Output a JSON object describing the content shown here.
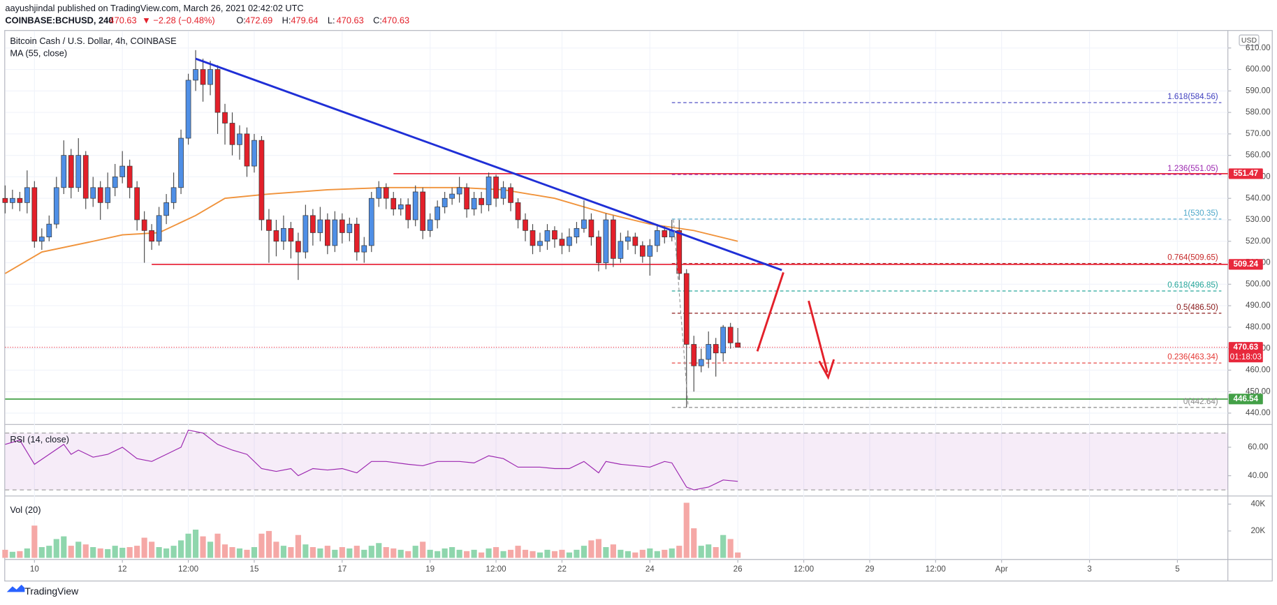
{
  "header": {
    "publisher": "aayushjindal published on TradingView.com, March 26, 2021 02:42:02 UTC",
    "symbol": "COINBASE:BCHUSD, 240",
    "change": "▼ −2.28 (−0.48%)",
    "ohlc": [
      {
        "label": "O:",
        "value": "472.69"
      },
      {
        "label": "H:",
        "value": "479.64"
      },
      {
        "label": "L:",
        "value": "470.63"
      },
      {
        "label": "C:",
        "value": "470.63"
      }
    ]
  },
  "chart_data": {
    "type": "candlestick",
    "title": "Bitcoin Cash / U.S. Dollar, 4h, COINBASE",
    "currency": "USD",
    "open": [
      540,
      538,
      540,
      538,
      545,
      520,
      522,
      528,
      545,
      560,
      545,
      560,
      540,
      545,
      538,
      545,
      550,
      555,
      545,
      530,
      525,
      520,
      532,
      538,
      545,
      568,
      595,
      600,
      593,
      600,
      580,
      575,
      565,
      570,
      555,
      567,
      530,
      525,
      520,
      526,
      520,
      515,
      532,
      524,
      530,
      518,
      530,
      524,
      528,
      515,
      518,
      540,
      545,
      540,
      535,
      537,
      530,
      543,
      525,
      530,
      536,
      540,
      542,
      545,
      535,
      540,
      537,
      550,
      540,
      545,
      538,
      530,
      525,
      518,
      520,
      525,
      521,
      518,
      522,
      526,
      530,
      522,
      510,
      530,
      512,
      520,
      522,
      518,
      513,
      518,
      525,
      522,
      525,
      505,
      472,
      462,
      465,
      472,
      468,
      480,
      472.69
    ],
    "high": [
      546,
      544,
      543,
      553,
      548,
      526,
      532,
      550,
      567,
      563,
      568,
      562,
      550,
      548,
      552,
      556,
      562,
      558,
      548,
      534,
      528,
      536,
      542,
      552,
      572,
      598,
      609,
      605,
      604,
      602,
      584,
      580,
      574,
      573,
      570,
      569,
      535,
      530,
      532,
      529,
      524,
      537,
      535,
      536,
      533,
      534,
      533,
      531,
      531,
      522,
      543,
      548,
      547,
      543,
      540,
      540,
      546,
      545,
      533,
      539,
      543,
      545,
      550,
      547,
      543,
      543,
      552,
      551,
      548,
      547,
      540,
      533,
      528,
      524,
      528,
      527,
      524,
      526,
      529,
      539,
      533,
      525,
      533,
      532,
      524,
      525,
      524,
      520,
      521,
      528,
      527,
      530,
      530,
      507,
      476,
      470,
      478,
      475,
      481,
      482,
      479.64
    ],
    "low": [
      533,
      535,
      534,
      533,
      517,
      516,
      520,
      526,
      542,
      540,
      543,
      535,
      536,
      530,
      535,
      541,
      547,
      540,
      525,
      510,
      516,
      518,
      528,
      535,
      542,
      565,
      590,
      585,
      588,
      570,
      565,
      560,
      558,
      550,
      552,
      525,
      510,
      513,
      516,
      512,
      502,
      512,
      518,
      520,
      514,
      515,
      519,
      520,
      511,
      510,
      515,
      536,
      535,
      532,
      532,
      526,
      527,
      521,
      522,
      526,
      533,
      537,
      538,
      531,
      532,
      533,
      534,
      536,
      537,
      534,
      526,
      520,
      514,
      515,
      516,
      517,
      514,
      515,
      519,
      524,
      518,
      506,
      507,
      508,
      510,
      516,
      514,
      510,
      504,
      515,
      519,
      520,
      502,
      442.64,
      450,
      459,
      461,
      457,
      464,
      470,
      470.63
    ],
    "close": [
      538,
      540,
      538,
      545,
      520,
      522,
      528,
      545,
      560,
      545,
      560,
      540,
      545,
      538,
      545,
      550,
      555,
      545,
      530,
      525,
      520,
      532,
      538,
      545,
      568,
      595,
      600,
      593,
      600,
      580,
      575,
      565,
      570,
      555,
      567,
      530,
      525,
      520,
      526,
      520,
      515,
      532,
      524,
      530,
      518,
      530,
      524,
      528,
      515,
      518,
      540,
      545,
      540,
      535,
      537,
      530,
      543,
      525,
      530,
      536,
      540,
      542,
      545,
      535,
      540,
      537,
      550,
      540,
      545,
      538,
      530,
      525,
      518,
      520,
      525,
      521,
      518,
      522,
      526,
      530,
      522,
      510,
      530,
      512,
      520,
      522,
      518,
      513,
      518,
      525,
      522,
      525,
      505,
      472,
      462,
      465,
      472,
      468,
      480,
      472.69,
      470.63
    ],
    "up_color": "#4f8fe6",
    "down_color": "#e3202a",
    "xlim": [
      0,
      167
    ],
    "xticks": [
      {
        "value": 4,
        "label": "10"
      },
      {
        "value": 16,
        "label": "12"
      },
      {
        "value": 25,
        "label": "12:00"
      },
      {
        "value": 34,
        "label": "15"
      },
      {
        "value": 46,
        "label": "17"
      },
      {
        "value": 58,
        "label": "19"
      },
      {
        "value": 67,
        "label": "12:00"
      },
      {
        "value": 76,
        "label": "22"
      },
      {
        "value": 88,
        "label": "24"
      },
      {
        "value": 100,
        "label": "26"
      },
      {
        "value": 109,
        "label": "12:00"
      },
      {
        "value": 118,
        "label": "29"
      },
      {
        "value": 127,
        "label": "12:00"
      },
      {
        "value": 136,
        "label": "Apr"
      },
      {
        "value": 148,
        "label": "3"
      },
      {
        "value": 160,
        "label": "5"
      }
    ],
    "ylim": [
      434.7,
      617.2
    ],
    "yticks": [
      {
        "value": 440,
        "label": "440.00"
      },
      {
        "value": 450,
        "label": "450.00"
      },
      {
        "value": 460,
        "label": "460.00"
      },
      {
        "value": 470,
        "label": "470.00"
      },
      {
        "value": 480,
        "label": "480.00"
      },
      {
        "value": 490,
        "label": "490.00"
      },
      {
        "value": 500,
        "label": "500.00"
      },
      {
        "value": 510,
        "label": "510.00"
      },
      {
        "value": 520,
        "label": "520.00"
      },
      {
        "value": 530,
        "label": "530.00"
      },
      {
        "value": 540,
        "label": "540.00"
      },
      {
        "value": 550,
        "label": "550.00"
      },
      {
        "value": 560,
        "label": "560.00"
      },
      {
        "value": 570,
        "label": "570.00"
      },
      {
        "value": 580,
        "label": "580.00"
      },
      {
        "value": 590,
        "label": "590.00"
      },
      {
        "value": 600,
        "label": "600.00"
      },
      {
        "value": 610,
        "label": "610.00"
      }
    ],
    "grid": true,
    "ma": {
      "name": "MA (55, close)",
      "color": "#f0923a",
      "x": [
        0,
        5,
        12,
        16,
        21,
        26,
        30,
        36,
        44,
        52,
        62,
        68,
        75,
        82,
        88,
        94,
        100
      ],
      "values": [
        505,
        515,
        520,
        523,
        524,
        532,
        540,
        542,
        544,
        545,
        545,
        544,
        540,
        533,
        528,
        525,
        520
      ]
    },
    "trendline": {
      "color": "#1f2fd6",
      "x": [
        26,
        106
      ],
      "values": [
        605,
        506.6
      ]
    },
    "levels": [
      {
        "value": 551.47,
        "color": "#e8283c",
        "x_start": 53
      },
      {
        "value": 509.24,
        "color": "#e8283c",
        "x_start": 20
      },
      {
        "value": 446.54,
        "color": "#43a047",
        "x_start": 0
      }
    ],
    "fib": {
      "x": [
        91,
        166
      ],
      "levels": [
        {
          "label": "1.618(584.56)",
          "value": 584.56,
          "color": "#3f3fbf"
        },
        {
          "label": "1.236(551.05)",
          "value": 551.05,
          "color": "#9c27b0"
        },
        {
          "label": "1(530.35)",
          "value": 530.35,
          "color": "#4ea8c9"
        },
        {
          "label": "0.764(509.65)",
          "value": 509.65,
          "color": "#c62828"
        },
        {
          "label": "0.618(496.85)",
          "value": 496.85,
          "color": "#26a69a"
        },
        {
          "label": "0.5(486.50)",
          "value": 486.5,
          "color": "#8b1a1a"
        },
        {
          "label": "0.236(463.34)",
          "value": 463.34,
          "color": "#e53935"
        },
        {
          "label": "0(442.64)",
          "value": 442.64,
          "color": "#888888"
        }
      ]
    },
    "last_price": 470.63,
    "countdown": "01:18:03",
    "last_color": "#e8283c",
    "rsi": {
      "name": "RSI (14, close)",
      "color": "#9c27b0",
      "ylim": [
        25.7,
        76
      ],
      "yticks": [
        {
          "value": 60,
          "label": "60.00"
        },
        {
          "value": 40,
          "label": "40.00"
        }
      ],
      "band": [
        30,
        70
      ],
      "x": [
        0,
        2,
        4,
        6,
        8,
        9,
        10,
        12,
        14,
        16,
        18,
        20,
        22,
        24,
        25,
        27,
        29,
        31,
        33,
        35,
        37,
        39,
        40,
        42,
        44,
        46,
        48,
        50,
        52,
        55,
        57,
        59,
        62,
        64,
        66,
        68,
        70,
        73,
        75,
        77,
        79,
        81,
        82,
        84,
        86,
        88,
        90,
        91,
        93,
        94,
        96,
        98,
        100
      ],
      "values": [
        62,
        65,
        48,
        55,
        62,
        55,
        58,
        53,
        55,
        60,
        52,
        50,
        55,
        60,
        72,
        70,
        62,
        58,
        55,
        45,
        43,
        45,
        40,
        45,
        44,
        45,
        42,
        50,
        50,
        48,
        47,
        50,
        50,
        49,
        54,
        52,
        46,
        46,
        45,
        45,
        50,
        42,
        50,
        48,
        47,
        46,
        50,
        49,
        32,
        30,
        32,
        37,
        36
      ]
    },
    "volume": {
      "name": "Vol (20)",
      "ylim": [
        -1200,
        46000
      ],
      "yticks": [
        {
          "value": 40000,
          "label": "40K"
        },
        {
          "value": 20000,
          "label": "20K"
        }
      ],
      "up_color": "#8fd6ad",
      "down_color": "#f5a8a6",
      "values": [
        6000,
        4500,
        5000,
        7000,
        24000,
        8000,
        9000,
        14000,
        16000,
        9000,
        12000,
        10000,
        8000,
        7000,
        6500,
        9000,
        7500,
        8000,
        9000,
        15000,
        12000,
        8000,
        7000,
        9000,
        13000,
        18000,
        21000,
        16000,
        12000,
        18000,
        10000,
        8000,
        7000,
        6000,
        8000,
        18000,
        20000,
        12000,
        9000,
        8000,
        17000,
        10000,
        8000,
        7000,
        9000,
        6000,
        8000,
        7000,
        9000,
        6000,
        9000,
        11000,
        8000,
        7000,
        6000,
        5000,
        9000,
        12000,
        6000,
        5000,
        7000,
        8000,
        6000,
        5000,
        6000,
        4000,
        7000,
        8000,
        5000,
        6000,
        9000,
        6000,
        5000,
        4000,
        6000,
        5000,
        6000,
        4000,
        6000,
        9000,
        13000,
        14000,
        8000,
        10000,
        6000,
        5000,
        4000,
        6000,
        7000,
        5000,
        6000,
        7000,
        9000,
        41000,
        22000,
        9000,
        10000,
        8000,
        17000,
        14000,
        4000
      ]
    }
  },
  "footer": {
    "brand": "TradingView"
  }
}
